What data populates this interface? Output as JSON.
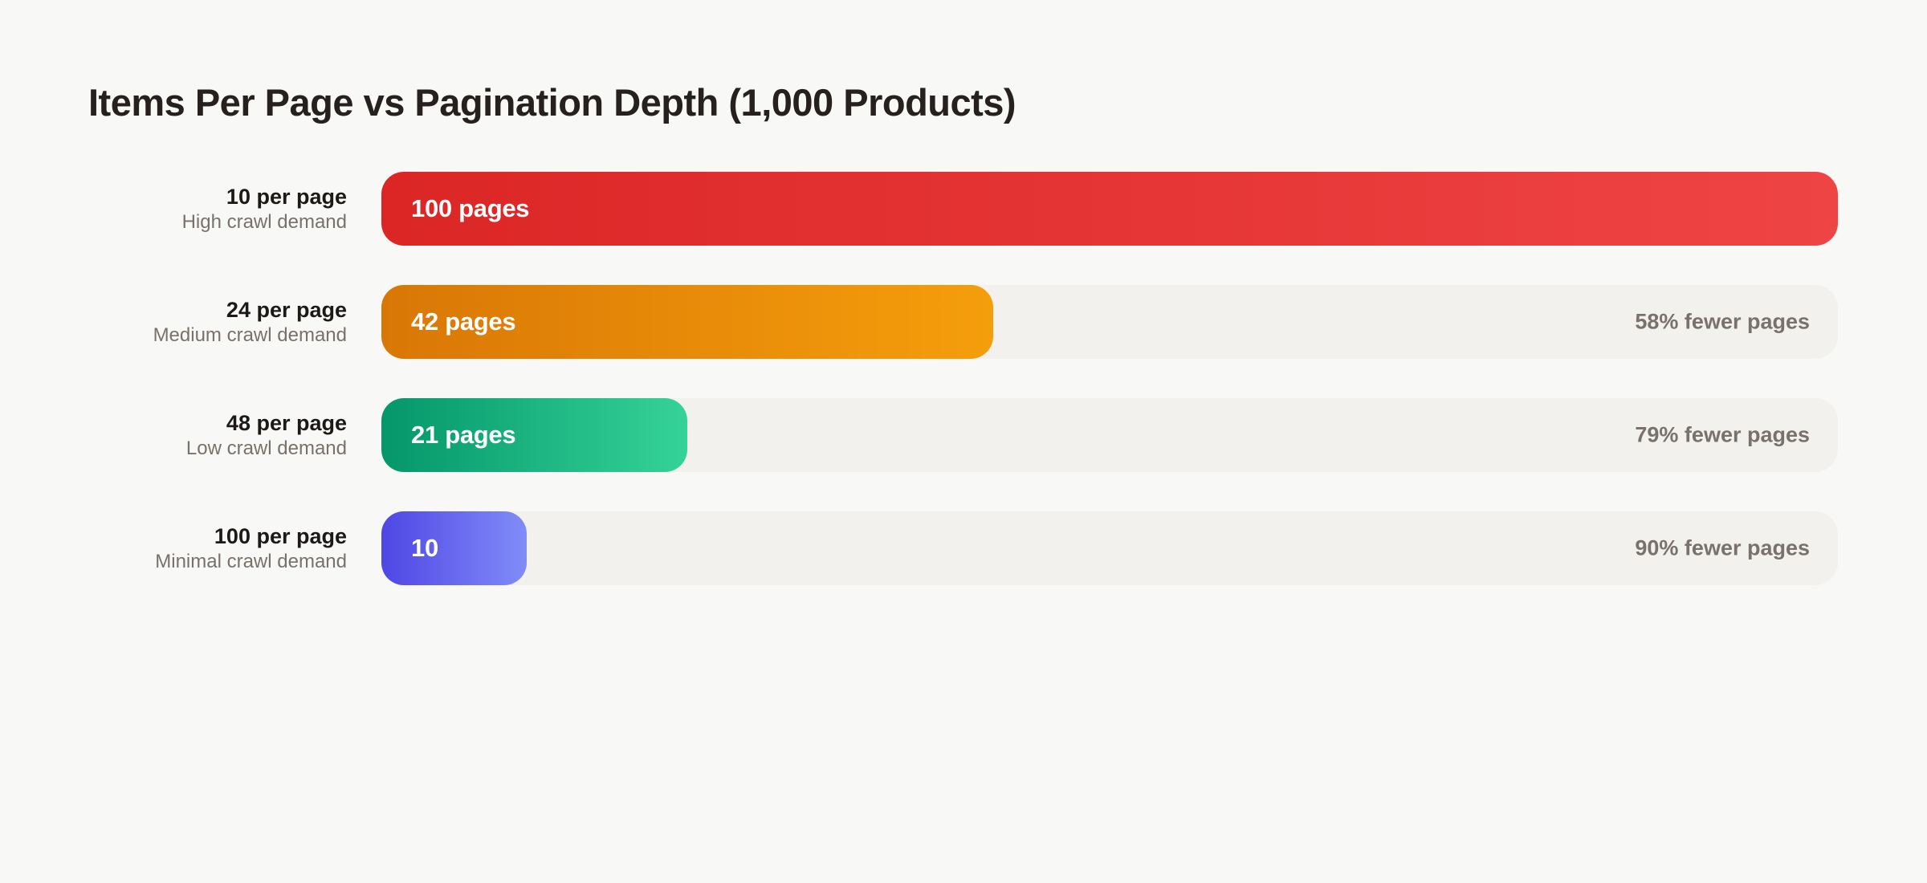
{
  "page": {
    "background_color": "#f8f8f6",
    "track_color": "#f2f1ee"
  },
  "chart_data": {
    "type": "bar",
    "orientation": "horizontal",
    "title": "Items Per Page vs Pagination Depth (1,000 Products)",
    "total_products": 1000,
    "unit": "pages",
    "max_value": 100,
    "grid": false,
    "legend": false,
    "rows": [
      {
        "label": "10 per page",
        "sublabel": "High crawl demand",
        "value": 100,
        "value_label": "100 pages",
        "reduction_label": "",
        "gradient_start": "#dc2626",
        "gradient_end": "#ef4444"
      },
      {
        "label": "24 per page",
        "sublabel": "Medium crawl demand",
        "value": 42,
        "value_label": "42 pages",
        "reduction_label": "58% fewer pages",
        "gradient_start": "#d97706",
        "gradient_end": "#f59e0b"
      },
      {
        "label": "48 per page",
        "sublabel": "Low crawl demand",
        "value": 21,
        "value_label": "21 pages",
        "reduction_label": "79% fewer pages",
        "gradient_start": "#059669",
        "gradient_end": "#34d399"
      },
      {
        "label": "100 per page",
        "sublabel": "Minimal crawl demand",
        "value": 10,
        "value_label": "10",
        "reduction_label": "90% fewer pages",
        "gradient_start": "#4f46e5",
        "gradient_end": "#818cf8"
      }
    ]
  }
}
